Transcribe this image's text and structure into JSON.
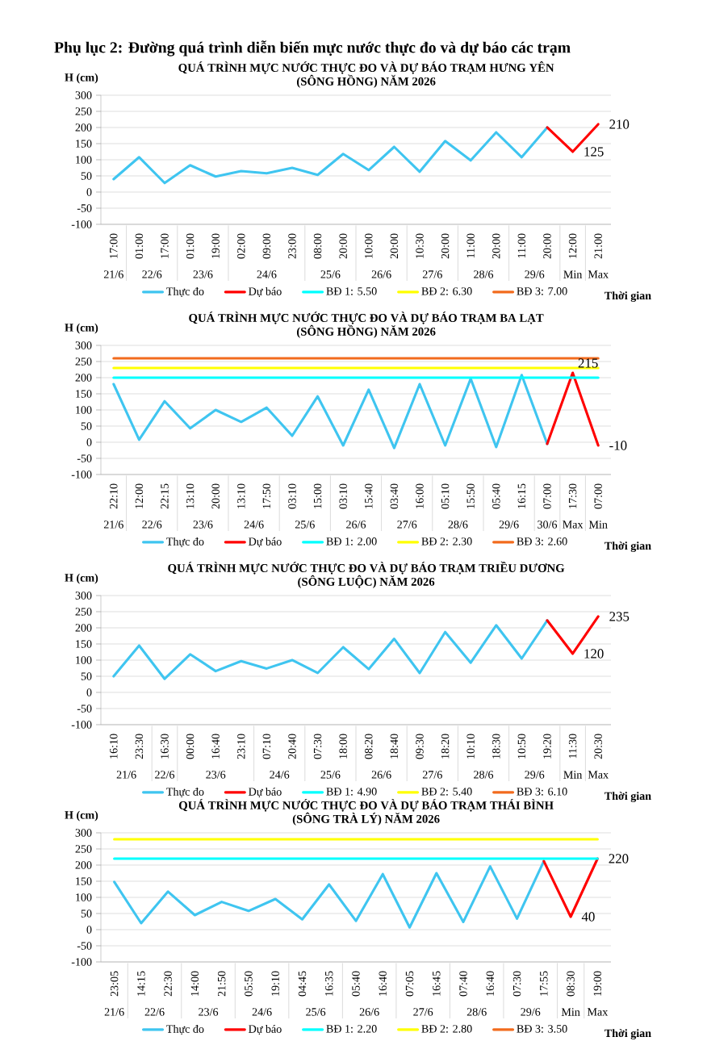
{
  "chart_data": [
    {
      "type": "other",
      "title": "Phụ lục 2: Đường quá trình diễn biến mực nước thực đo và dự báo các trạm"
    },
    {
      "type": "line",
      "title": "QUÁ TRÌNH MỰC NƯỚC THỰC ĐO VÀ DỰ BÁO TRẠM  HƯNG YÊN",
      "subtitle": "(SÔNG HỒNG) NĂM 2026",
      "xlabel": "Thời gian",
      "ylabel": "H (cm)",
      "categories": [
        "17:00",
        "01:00",
        "17:00",
        "01:00",
        "19:00",
        "02:00",
        "09:00",
        "23:00",
        "08:00",
        "20:00",
        "10:00",
        "20:00",
        "10:30",
        "20:00",
        "11:00",
        "20:00",
        "11:00",
        "20:00",
        "12:00",
        "21:00"
      ],
      "annotations": [
        "21/6",
        "22/6",
        "23/6",
        "24/6",
        "25/6",
        "26/6",
        "27/6",
        "28/6",
        "29/6",
        "Min",
        "Max"
      ],
      "ylim": [
        -100,
        300
      ],
      "yticks": [
        -100,
        -50,
        0,
        50,
        100,
        150,
        200,
        250,
        300
      ],
      "grid": "y",
      "legend": "bottom",
      "marker": "none",
      "series": [
        {
          "name": "Thực đo",
          "color": "#3fc5f0",
          "type": "line",
          "values": [
            40,
            108,
            28,
            83,
            48,
            65,
            58,
            75,
            53,
            118,
            68,
            140,
            63,
            158,
            98,
            185,
            108,
            200,
            null,
            null
          ]
        },
        {
          "name": "Dự báo",
          "color": "#ff0000",
          "type": "line",
          "values": [
            null,
            null,
            null,
            null,
            null,
            null,
            null,
            null,
            null,
            null,
            null,
            null,
            null,
            null,
            null,
            null,
            null,
            200,
            125,
            210
          ],
          "value_labels": [
            null,
            null,
            null,
            null,
            null,
            null,
            null,
            null,
            null,
            null,
            null,
            null,
            null,
            null,
            null,
            null,
            null,
            null,
            "125",
            "210"
          ]
        },
        {
          "name": "BĐ 1: 5.50",
          "color": "#00ffff",
          "type": "line",
          "values": [
            null,
            null,
            null,
            null,
            null,
            null,
            null,
            null,
            null,
            null,
            null,
            null,
            null,
            null,
            null,
            null,
            null,
            null,
            null,
            null
          ]
        },
        {
          "name": "BĐ 2: 6.30",
          "color": "#ffff00",
          "type": "line",
          "values": [
            null,
            null,
            null,
            null,
            null,
            null,
            null,
            null,
            null,
            null,
            null,
            null,
            null,
            null,
            null,
            null,
            null,
            null,
            null,
            null
          ]
        },
        {
          "name": "BĐ 3: 7.00",
          "color": "#f26b1d",
          "type": "line",
          "values": [
            null,
            null,
            null,
            null,
            null,
            null,
            null,
            null,
            null,
            null,
            null,
            null,
            null,
            null,
            null,
            null,
            null,
            null,
            null,
            null
          ]
        }
      ]
    },
    {
      "type": "line",
      "title": "QUÁ TRÌNH MỰC NƯỚC THỰC ĐO VÀ DỰ BÁO TRẠM  BA LẠT",
      "subtitle": "(SÔNG HỒNG) NĂM 2026",
      "xlabel": "Thời gian",
      "ylabel": "H (cm)",
      "categories": [
        "22:10",
        "12:00",
        "22:15",
        "13:10",
        "20:00",
        "13:10",
        "17:50",
        "03:10",
        "15:00",
        "03:10",
        "15:40",
        "03:40",
        "16:00",
        "05:10",
        "15:50",
        "05:40",
        "16:15",
        "07:00",
        "17:30",
        "07:00"
      ],
      "annotations": [
        "21/6",
        "22/6",
        "23/6",
        "24/6",
        "25/6",
        "26/6",
        "27/6",
        "28/6",
        "29/6",
        "30/6",
        "Max",
        "Min"
      ],
      "ylim": [
        -100,
        300
      ],
      "yticks": [
        -100,
        -50,
        0,
        50,
        100,
        150,
        200,
        250,
        300
      ],
      "grid": "y",
      "legend": "bottom",
      "marker": "none",
      "series": [
        {
          "name": "Thực đo",
          "color": "#3fc5f0",
          "type": "line",
          "values": [
            180,
            8,
            127,
            43,
            100,
            63,
            107,
            20,
            142,
            -10,
            163,
            -18,
            180,
            -10,
            197,
            -15,
            208,
            -5,
            null,
            null
          ]
        },
        {
          "name": "Dự báo",
          "color": "#ff0000",
          "type": "line",
          "values": [
            null,
            null,
            null,
            null,
            null,
            null,
            null,
            null,
            null,
            null,
            null,
            null,
            null,
            null,
            null,
            null,
            null,
            -5,
            215,
            -10
          ],
          "value_labels": [
            null,
            null,
            null,
            null,
            null,
            null,
            null,
            null,
            null,
            null,
            null,
            null,
            null,
            null,
            null,
            null,
            null,
            null,
            "215",
            "-10"
          ]
        },
        {
          "name": "BĐ 1: 2.00",
          "color": "#00ffff",
          "type": "line",
          "values": [
            200,
            200,
            200,
            200,
            200,
            200,
            200,
            200,
            200,
            200,
            200,
            200,
            200,
            200,
            200,
            200,
            200,
            200,
            200,
            200
          ]
        },
        {
          "name": "BĐ 2: 2.30",
          "color": "#ffff00",
          "type": "line",
          "values": [
            230,
            230,
            230,
            230,
            230,
            230,
            230,
            230,
            230,
            230,
            230,
            230,
            230,
            230,
            230,
            230,
            230,
            230,
            230,
            230
          ]
        },
        {
          "name": "BĐ 3: 2.60",
          "color": "#f26b1d",
          "type": "line",
          "values": [
            260,
            260,
            260,
            260,
            260,
            260,
            260,
            260,
            260,
            260,
            260,
            260,
            260,
            260,
            260,
            260,
            260,
            260,
            260,
            260
          ]
        }
      ]
    },
    {
      "type": "line",
      "title": "QUÁ TRÌNH MỰC NƯỚC THỰC ĐO VÀ DỰ BÁO TRẠM  TRIỀU DƯƠNG",
      "subtitle": "(SÔNG LUỘC) NĂM 2026",
      "xlabel": "Thời gian",
      "ylabel": "H (cm)",
      "categories": [
        "16:10",
        "23:30",
        "16:30",
        "00:00",
        "16:40",
        "23:10",
        "07:10",
        "20:40",
        "07:30",
        "18:00",
        "08:20",
        "18:40",
        "09:30",
        "18:20",
        "10:10",
        "18:30",
        "10:50",
        "19:20",
        "11:30",
        "20:30"
      ],
      "annotations": [
        "21/6",
        "22/6",
        "23/6",
        "24/6",
        "25/6",
        "26/6",
        "27/6",
        "28/6",
        "29/6",
        "Min",
        "Max"
      ],
      "ylim": [
        -100,
        300
      ],
      "yticks": [
        -100,
        -50,
        0,
        50,
        100,
        150,
        200,
        250,
        300
      ],
      "grid": "y",
      "legend": "bottom",
      "marker": "none",
      "series": [
        {
          "name": "Thực đo",
          "color": "#3fc5f0",
          "type": "line",
          "values": [
            50,
            145,
            42,
            118,
            66,
            97,
            74,
            100,
            60,
            140,
            72,
            166,
            60,
            187,
            92,
            208,
            105,
            223,
            null,
            null
          ]
        },
        {
          "name": "Dự báo",
          "color": "#ff0000",
          "type": "line",
          "values": [
            null,
            null,
            null,
            null,
            null,
            null,
            null,
            null,
            null,
            null,
            null,
            null,
            null,
            null,
            null,
            null,
            null,
            223,
            120,
            235
          ],
          "value_labels": [
            null,
            null,
            null,
            null,
            null,
            null,
            null,
            null,
            null,
            null,
            null,
            null,
            null,
            null,
            null,
            null,
            null,
            null,
            "120",
            "235"
          ]
        },
        {
          "name": "BĐ 1: 4.90",
          "color": "#00ffff",
          "type": "line",
          "values": [
            null,
            null,
            null,
            null,
            null,
            null,
            null,
            null,
            null,
            null,
            null,
            null,
            null,
            null,
            null,
            null,
            null,
            null,
            null,
            null
          ]
        },
        {
          "name": "BĐ 2: 5.40",
          "color": "#ffff00",
          "type": "line",
          "values": [
            null,
            null,
            null,
            null,
            null,
            null,
            null,
            null,
            null,
            null,
            null,
            null,
            null,
            null,
            null,
            null,
            null,
            null,
            null,
            null
          ]
        },
        {
          "name": "BĐ 3: 6.10",
          "color": "#f26b1d",
          "type": "line",
          "values": [
            null,
            null,
            null,
            null,
            null,
            null,
            null,
            null,
            null,
            null,
            null,
            null,
            null,
            null,
            null,
            null,
            null,
            null,
            null,
            null
          ]
        }
      ]
    },
    {
      "type": "line",
      "title": "QUÁ TRÌNH MỰC NƯỚC THỰC ĐO VÀ DỰ BÁO TRẠM  THÁI BÌNH",
      "subtitle": "(SÔNG TRÀ LÝ) NĂM 2026",
      "xlabel": "Thời gian",
      "ylabel": "H (cm)",
      "categories": [
        "23:05",
        "14:15",
        "22:30",
        "14:00",
        "21:50",
        "05:50",
        "19:10",
        "04:45",
        "16:35",
        "05:40",
        "16:40",
        "07:05",
        "16:45",
        "07:40",
        "16:40",
        "07:30",
        "17:55",
        "08:30",
        "19:00"
      ],
      "annotations": [
        "21/6",
        "22/6",
        "23/6",
        "24/6",
        "25/6",
        "26/6",
        "27/6",
        "28/6",
        "29/6",
        "Min",
        "Max"
      ],
      "ylim": [
        -100,
        300
      ],
      "yticks": [
        -100,
        -50,
        0,
        50,
        100,
        150,
        200,
        250,
        300
      ],
      "grid": "y",
      "legend": "bottom",
      "marker": "none",
      "series": [
        {
          "name": "Thực đo",
          "color": "#3fc5f0",
          "type": "line",
          "values": [
            148,
            20,
            118,
            45,
            86,
            58,
            95,
            32,
            140,
            27,
            172,
            7,
            175,
            24,
            196,
            34,
            212,
            null,
            null
          ]
        },
        {
          "name": "Dự báo",
          "color": "#ff0000",
          "type": "line",
          "values": [
            null,
            null,
            null,
            null,
            null,
            null,
            null,
            null,
            null,
            null,
            null,
            null,
            null,
            null,
            null,
            null,
            212,
            40,
            220
          ],
          "value_labels": [
            null,
            null,
            null,
            null,
            null,
            null,
            null,
            null,
            null,
            null,
            null,
            null,
            null,
            null,
            null,
            null,
            null,
            "40",
            "220"
          ]
        },
        {
          "name": "BĐ 1: 2.20",
          "color": "#00ffff",
          "type": "line",
          "values": [
            220,
            220,
            220,
            220,
            220,
            220,
            220,
            220,
            220,
            220,
            220,
            220,
            220,
            220,
            220,
            220,
            220,
            220,
            220
          ]
        },
        {
          "name": "BĐ 2: 2.80",
          "color": "#ffff00",
          "type": "line",
          "values": [
            280,
            280,
            280,
            280,
            280,
            280,
            280,
            280,
            280,
            280,
            280,
            280,
            280,
            280,
            280,
            280,
            280,
            280,
            280
          ]
        },
        {
          "name": "BĐ 3: 3.50",
          "color": "#f26b1d",
          "type": "line",
          "values": [
            null,
            null,
            null,
            null,
            null,
            null,
            null,
            null,
            null,
            null,
            null,
            null,
            null,
            null,
            null,
            null,
            null,
            null,
            null
          ]
        }
      ]
    }
  ]
}
